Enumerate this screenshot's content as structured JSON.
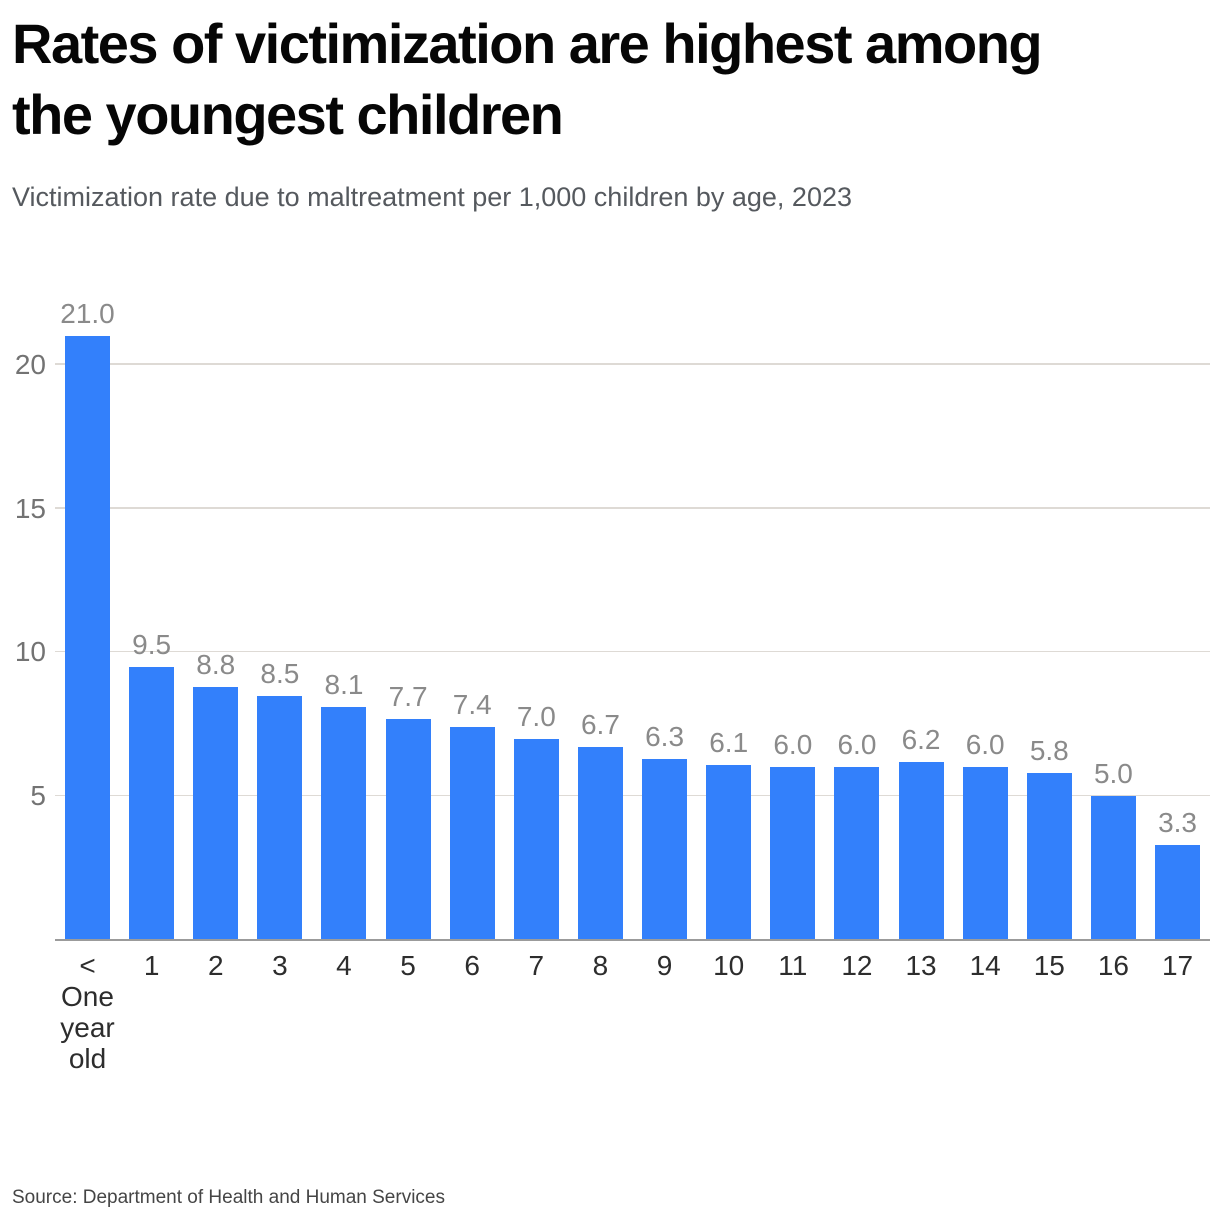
{
  "header": {
    "title_line1": "Rates of victimization are highest among",
    "title_line2": "the youngest children",
    "subtitle": "Victimization rate due to maltreatment per 1,000 children by age, 2023"
  },
  "chart_data": {
    "type": "bar",
    "title": "Rates of victimization are highest among the youngest children",
    "subtitle": "Victimization rate due to maltreatment per 1,000 children by age, 2023",
    "categories": [
      "< One year old",
      "1",
      "2",
      "3",
      "4",
      "5",
      "6",
      "7",
      "8",
      "9",
      "10",
      "11",
      "12",
      "13",
      "14",
      "15",
      "16",
      "17"
    ],
    "first_category_lines": [
      "<",
      "One",
      "year",
      "old"
    ],
    "values": [
      21.0,
      9.5,
      8.8,
      8.5,
      8.1,
      7.7,
      7.4,
      7.0,
      6.7,
      6.3,
      6.1,
      6.0,
      6.0,
      6.2,
      6.0,
      5.8,
      5.0,
      3.3
    ],
    "value_labels": [
      "21.0",
      "9.5",
      "8.8",
      "8.5",
      "8.1",
      "7.7",
      "7.4",
      "7.0",
      "6.7",
      "6.3",
      "6.1",
      "6.0",
      "6.0",
      "6.2",
      "6.0",
      "5.8",
      "5.0",
      "3.3"
    ],
    "xlabel": "",
    "ylabel": "",
    "yticks": [
      5,
      10,
      15,
      20
    ],
    "ylim": [
      0,
      21
    ],
    "grid": true,
    "legend": false,
    "bar_color": "#3380fb",
    "gridline_color": "#dedad5",
    "axis_line_color": "#9b9b9b",
    "value_label_color": "#8a8a8a",
    "tick_label_color": "#737373",
    "x_label_color": "#2d2d2d"
  },
  "footer": {
    "source": "Source: Department of Health and Human Services"
  }
}
